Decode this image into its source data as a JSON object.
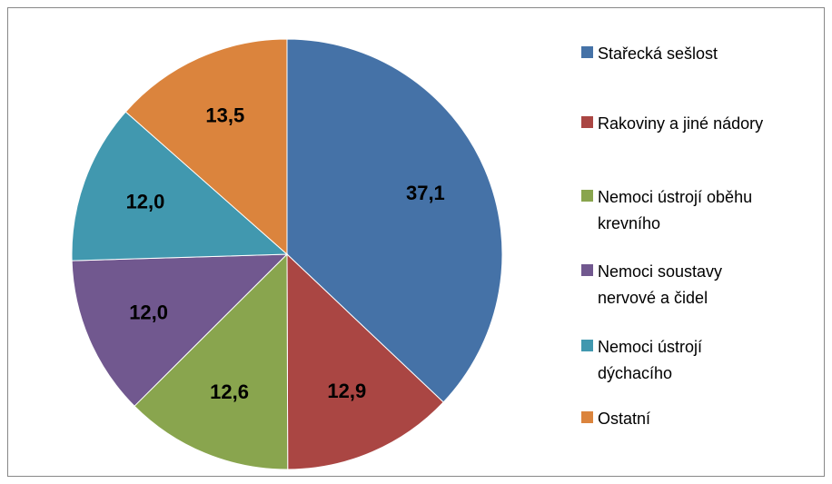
{
  "chart_data": {
    "type": "pie",
    "categories": [
      "Stařecká sešlost",
      "Rakoviny a jiné nádory",
      "Nemoci ústrojí oběhu krevního",
      "Nemoci soustavy nervové a čidel",
      "Nemoci ústrojí dýchacího",
      "Ostatní"
    ],
    "values": [
      37.1,
      12.9,
      12.6,
      12.0,
      12.0,
      13.5
    ],
    "value_labels": [
      "37,1",
      "12,9",
      "12,6",
      "12,0",
      "12,0",
      "13,5"
    ],
    "colors": [
      "#4572a7",
      "#aa4643",
      "#89a54e",
      "#71588f",
      "#4198af",
      "#db843d"
    ],
    "legend": "right"
  }
}
